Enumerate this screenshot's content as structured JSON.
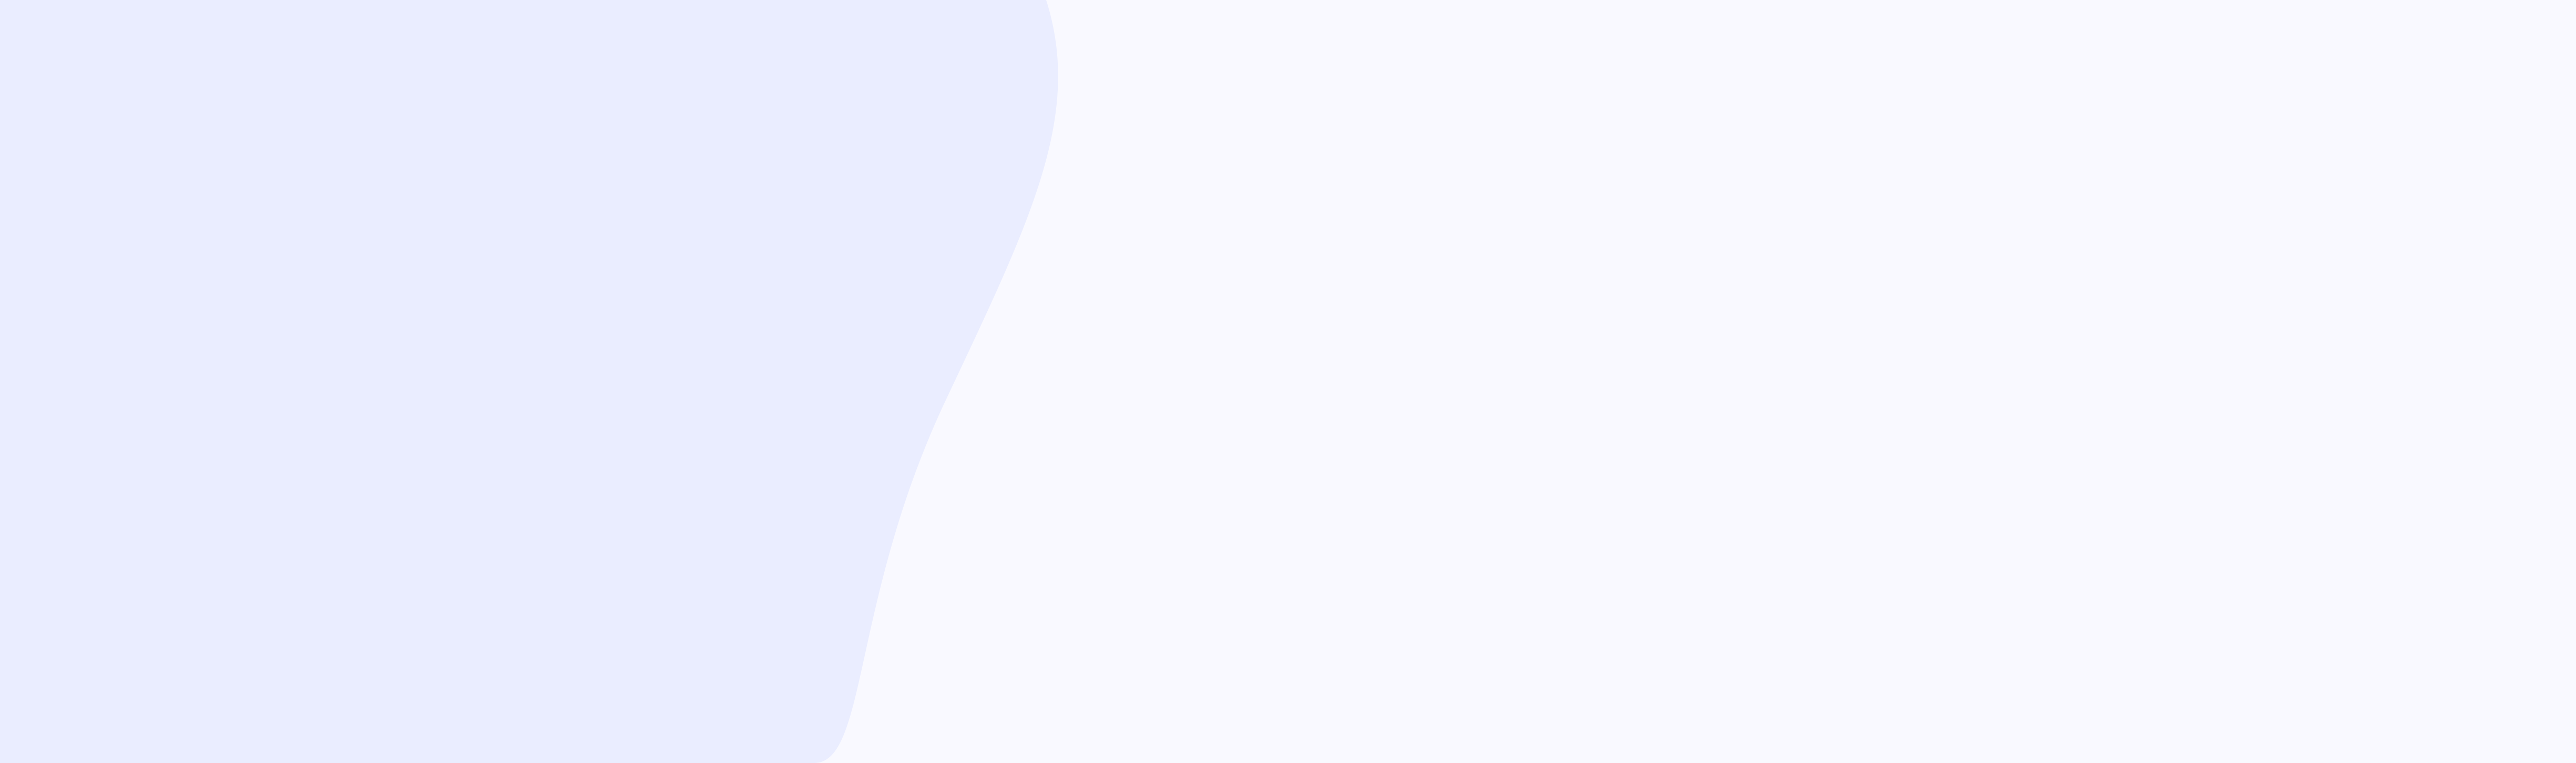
{
  "colors": {
    "background": "#f9f9ff",
    "blob": "#eaedff"
  }
}
